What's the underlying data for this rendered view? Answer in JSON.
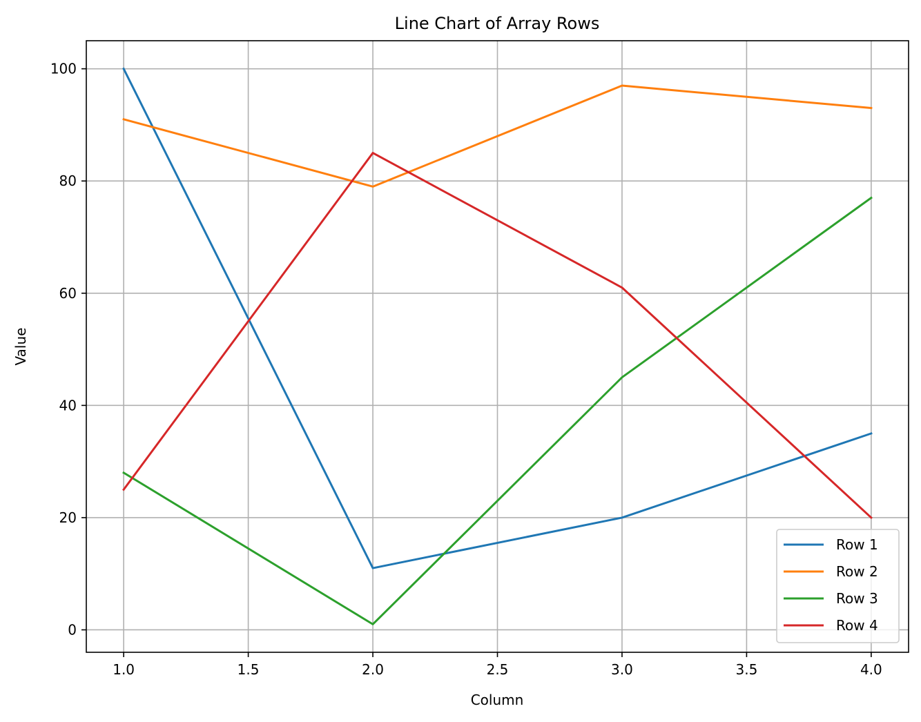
{
  "chart_data": {
    "type": "line",
    "title": "Line Chart of Array Rows",
    "xlabel": "Column",
    "ylabel": "Value",
    "x": [
      1.0,
      2.0,
      3.0,
      4.0
    ],
    "xlim": [
      0.85,
      4.15
    ],
    "ylim": [
      -4,
      105
    ],
    "xticks": [
      1.0,
      1.5,
      2.0,
      2.5,
      3.0,
      3.5,
      4.0
    ],
    "xtick_labels": [
      "1.0",
      "1.5",
      "2.0",
      "2.5",
      "3.0",
      "3.5",
      "4.0"
    ],
    "yticks": [
      0,
      20,
      40,
      60,
      80,
      100
    ],
    "ytick_labels": [
      "0",
      "20",
      "40",
      "60",
      "80",
      "100"
    ],
    "grid": true,
    "legend_position": "lower-right",
    "series": [
      {
        "name": "Row 1",
        "color": "#1f77b4",
        "values": [
          100,
          11,
          20,
          35
        ]
      },
      {
        "name": "Row 2",
        "color": "#ff7f0e",
        "values": [
          91,
          79,
          97,
          93
        ]
      },
      {
        "name": "Row 3",
        "color": "#2ca02c",
        "values": [
          28,
          1,
          45,
          77
        ]
      },
      {
        "name": "Row 4",
        "color": "#d62728",
        "values": [
          25,
          85,
          61,
          20
        ]
      }
    ]
  }
}
